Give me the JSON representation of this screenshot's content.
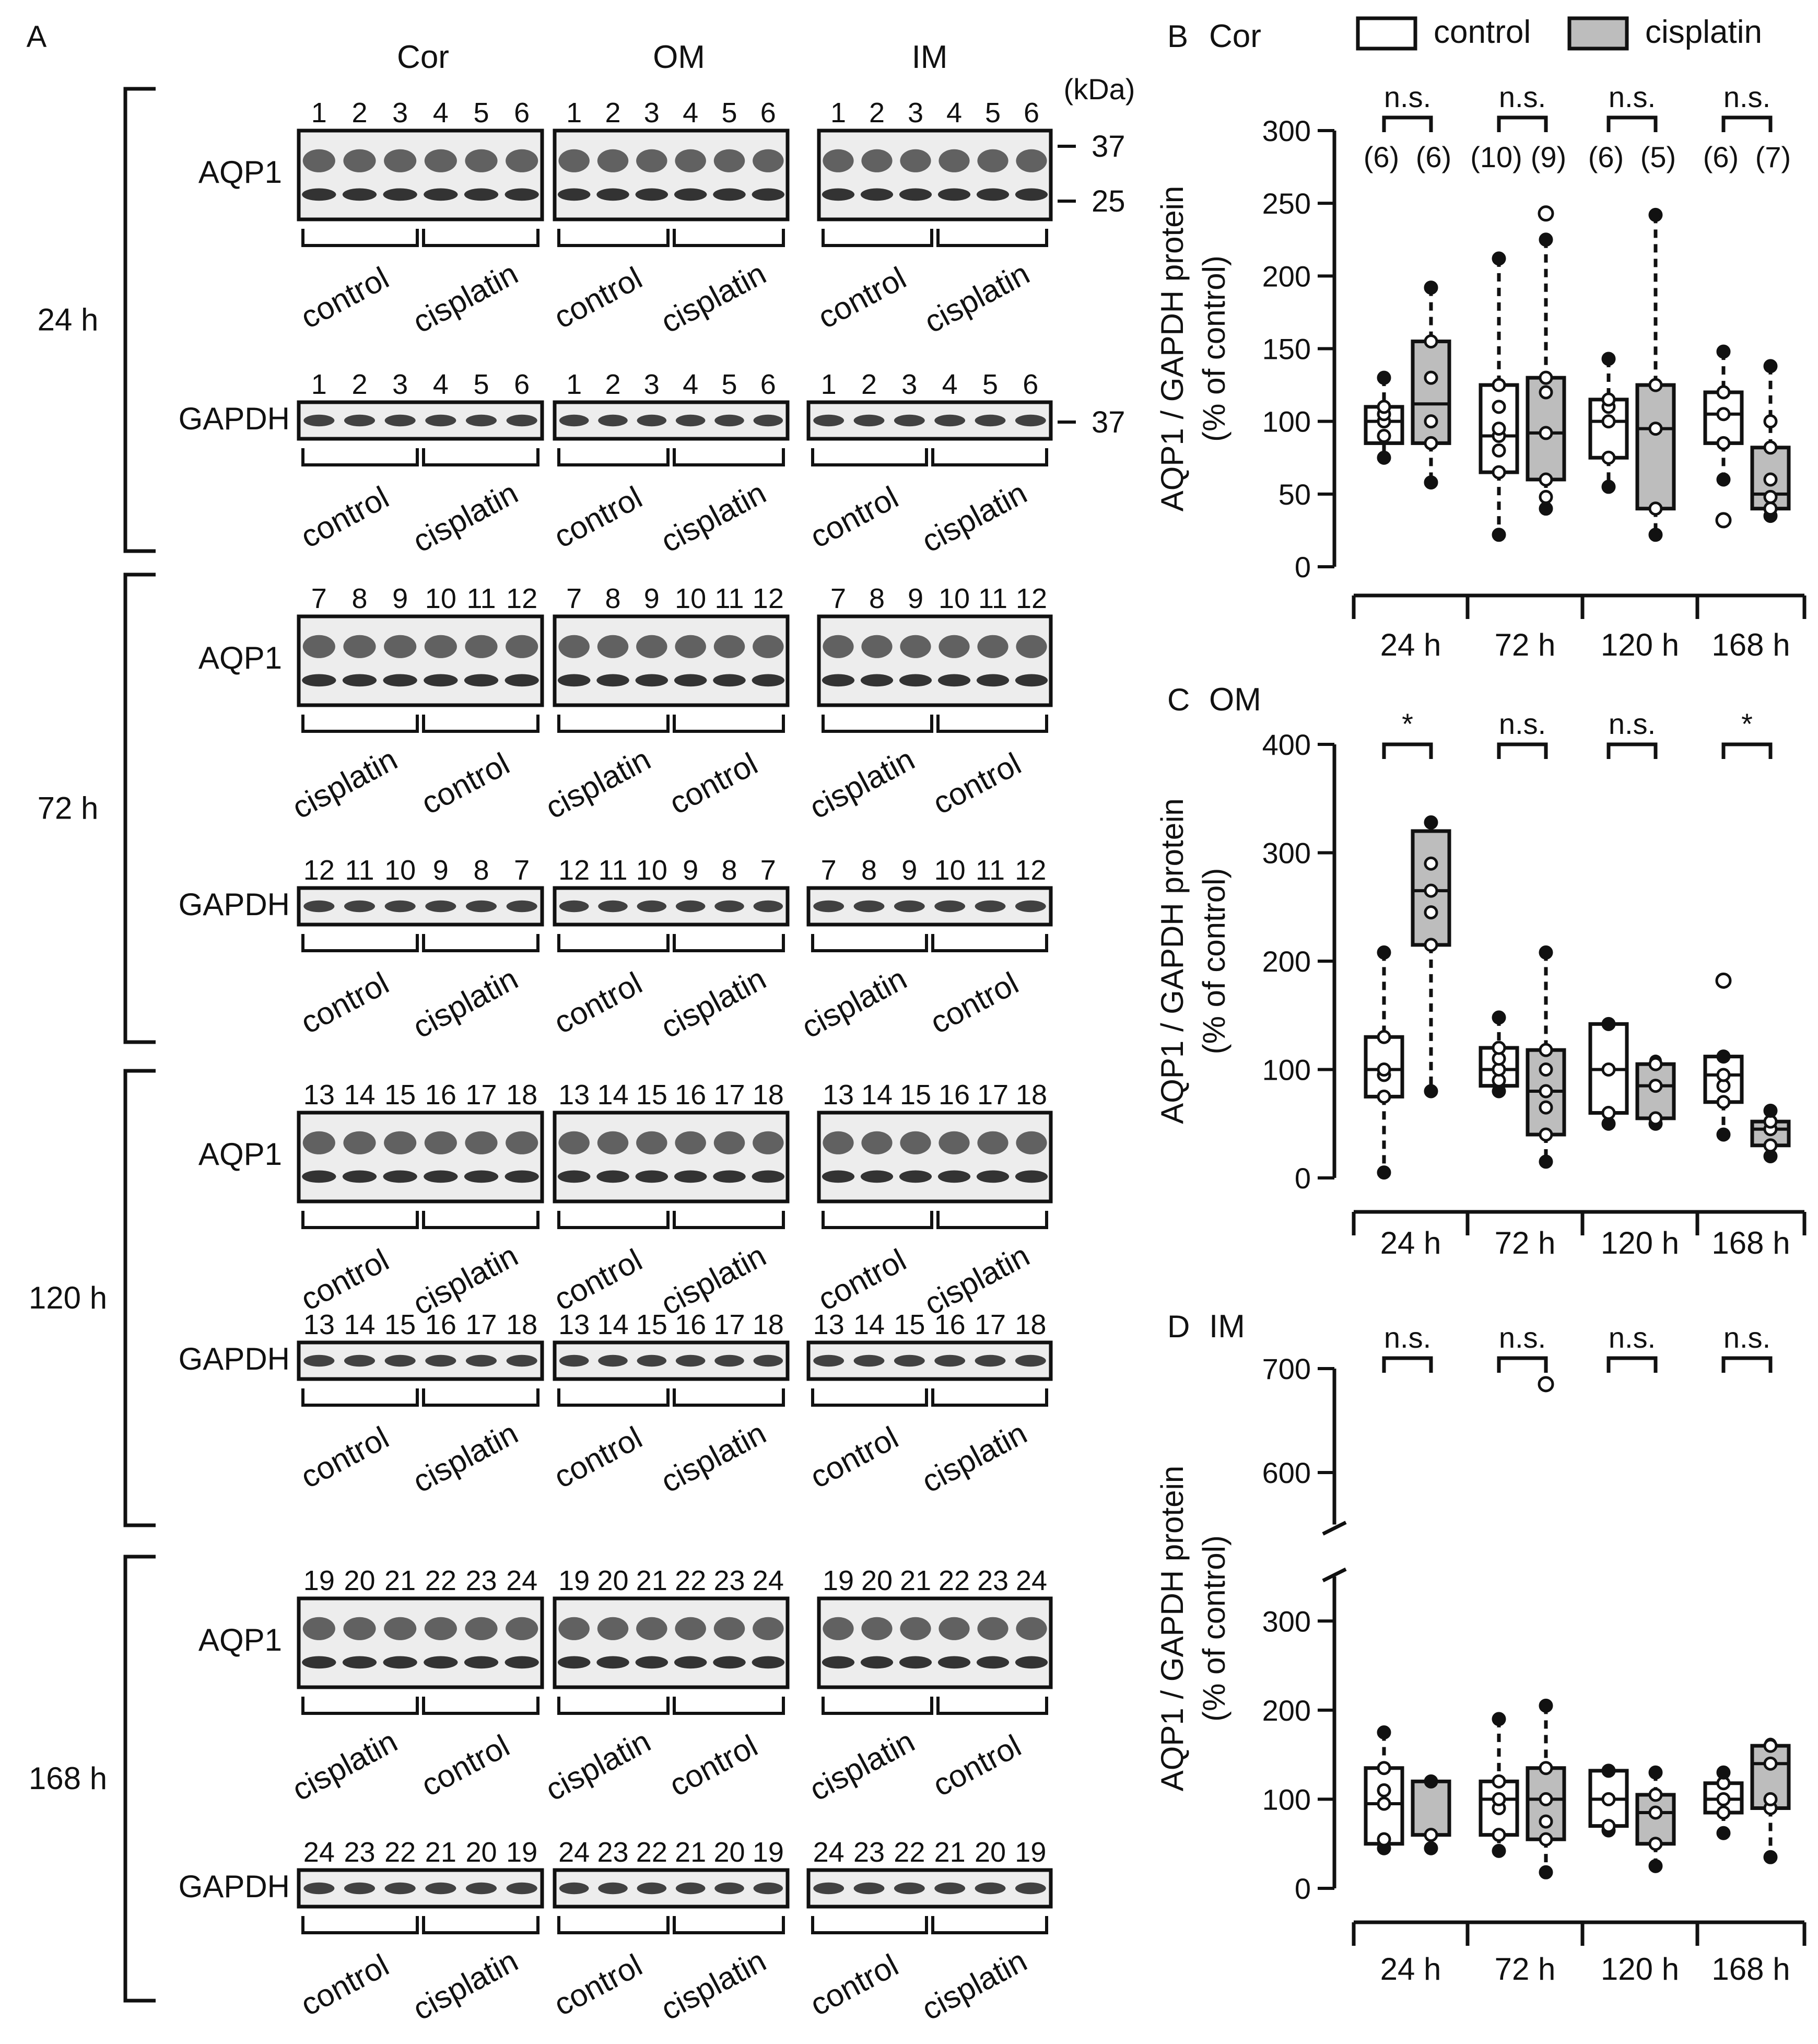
{
  "panel_a": {
    "label": "A",
    "region_labels": [
      "Cor",
      "OM",
      "IM"
    ],
    "unit_label": "(kDa)",
    "mw_markers": [
      "37",
      "25",
      "37"
    ],
    "protein_labels": {
      "aqp1": "AQP1",
      "gapdh": "GAPDH"
    },
    "group_labels": {
      "control": "control",
      "cisplatin": "cisplatin"
    },
    "timepoints": [
      {
        "label": "24 h",
        "aqp1_lanes": [
          [
            "1",
            "2",
            "3",
            "4",
            "5",
            "6"
          ],
          [
            "1",
            "2",
            "3",
            "4",
            "5",
            "6"
          ],
          [
            "1",
            "2",
            "3",
            "4",
            "5",
            "6"
          ]
        ],
        "aqp1_groups": [
          [
            "control",
            "cisplatin"
          ],
          [
            "control",
            "cisplatin"
          ],
          [
            "control",
            "cisplatin"
          ]
        ],
        "gapdh_lanes": [
          [
            "1",
            "2",
            "3",
            "4",
            "5",
            "6"
          ],
          [
            "1",
            "2",
            "3",
            "4",
            "5",
            "6"
          ],
          [
            "1",
            "2",
            "3",
            "4",
            "5",
            "6"
          ]
        ],
        "gapdh_groups": [
          [
            "control",
            "cisplatin"
          ],
          [
            "control",
            "cisplatin"
          ],
          [
            "control",
            "cisplatin"
          ]
        ]
      },
      {
        "label": "72 h",
        "aqp1_lanes": [
          [
            "7",
            "8",
            "9",
            "10",
            "11",
            "12"
          ],
          [
            "7",
            "8",
            "9",
            "10",
            "11",
            "12"
          ],
          [
            "7",
            "8",
            "9",
            "10",
            "11",
            "12"
          ]
        ],
        "aqp1_groups": [
          [
            "cisplatin",
            "control"
          ],
          [
            "cisplatin",
            "control"
          ],
          [
            "cisplatin",
            "control"
          ]
        ],
        "gapdh_lanes": [
          [
            "12",
            "11",
            "10",
            "9",
            "8",
            "7"
          ],
          [
            "12",
            "11",
            "10",
            "9",
            "8",
            "7"
          ],
          [
            "7",
            "8",
            "9",
            "10",
            "11",
            "12"
          ]
        ],
        "gapdh_groups": [
          [
            "control",
            "cisplatin"
          ],
          [
            "control",
            "cisplatin"
          ],
          [
            "cisplatin",
            "control"
          ]
        ]
      },
      {
        "label": "120 h",
        "aqp1_lanes": [
          [
            "13",
            "14",
            "15",
            "16",
            "17",
            "18"
          ],
          [
            "13",
            "14",
            "15",
            "16",
            "17",
            "18"
          ],
          [
            "13",
            "14",
            "15",
            "16",
            "17",
            "18"
          ]
        ],
        "aqp1_groups": [
          [
            "control",
            "cisplatin"
          ],
          [
            "control",
            "cisplatin"
          ],
          [
            "control",
            "cisplatin"
          ]
        ],
        "gapdh_lanes": [
          [
            "13",
            "14",
            "15",
            "16",
            "17",
            "18"
          ],
          [
            "13",
            "14",
            "15",
            "16",
            "17",
            "18"
          ],
          [
            "13",
            "14",
            "15",
            "16",
            "17",
            "18"
          ]
        ],
        "gapdh_groups": [
          [
            "control",
            "cisplatin"
          ],
          [
            "control",
            "cisplatin"
          ],
          [
            "control",
            "cisplatin"
          ]
        ]
      },
      {
        "label": "168 h",
        "aqp1_lanes": [
          [
            "19",
            "20",
            "21",
            "22",
            "23",
            "24"
          ],
          [
            "19",
            "20",
            "21",
            "22",
            "23",
            "24"
          ],
          [
            "19",
            "20",
            "21",
            "22",
            "23",
            "24"
          ]
        ],
        "aqp1_groups": [
          [
            "cisplatin",
            "control"
          ],
          [
            "cisplatin",
            "control"
          ],
          [
            "cisplatin",
            "control"
          ]
        ],
        "gapdh_lanes": [
          [
            "24",
            "23",
            "22",
            "21",
            "20",
            "19"
          ],
          [
            "24",
            "23",
            "22",
            "21",
            "20",
            "19"
          ],
          [
            "24",
            "23",
            "22",
            "21",
            "20",
            "19"
          ]
        ],
        "gapdh_groups": [
          [
            "control",
            "cisplatin"
          ],
          [
            "control",
            "cisplatin"
          ],
          [
            "control",
            "cisplatin"
          ]
        ]
      }
    ]
  },
  "legend": {
    "control": "control",
    "cisplatin": "cisplatin"
  },
  "colors": {
    "control_fill": "#ffffff",
    "cisplatin_fill": "#bdbdbd",
    "ink": "#111111",
    "blot_bg": "#ededed"
  },
  "chart_data": [
    {
      "panel": "B",
      "title": "Cor",
      "type": "box",
      "ylabel_line1": "AQP1 / GAPDH protein",
      "ylabel_line2": "(% of control)",
      "categories": [
        "24 h",
        "72 h",
        "120 h",
        "168 h"
      ],
      "ylim": [
        0,
        300
      ],
      "yticks": [
        0,
        50,
        100,
        150,
        200,
        250,
        300
      ],
      "significance": [
        "n.s.",
        "n.s.",
        "n.s.",
        "n.s."
      ],
      "n_labels": [
        [
          "(6)",
          "(6)"
        ],
        [
          "(10)",
          "(9)"
        ],
        [
          "(6)",
          "(5)"
        ],
        [
          "(6)",
          "(7)"
        ]
      ],
      "series": [
        {
          "name": "control",
          "boxes": [
            {
              "min": 75,
              "q1": 85,
              "median": 100,
              "q3": 110,
              "max": 130,
              "points": [
                75,
                90,
                100,
                105,
                110,
                130
              ],
              "outliers": []
            },
            {
              "min": 22,
              "q1": 65,
              "median": 90,
              "q3": 125,
              "max": 212,
              "points": [
                22,
                65,
                80,
                90,
                95,
                110,
                125,
                212
              ],
              "outliers": []
            },
            {
              "min": 55,
              "q1": 75,
              "median": 100,
              "q3": 115,
              "max": 143,
              "points": [
                55,
                75,
                100,
                110,
                115,
                143
              ],
              "outliers": []
            },
            {
              "min": 60,
              "q1": 85,
              "median": 105,
              "q3": 120,
              "max": 148,
              "points": [
                60,
                85,
                105,
                120,
                148
              ],
              "outliers": [
                32
              ]
            }
          ]
        },
        {
          "name": "cisplatin",
          "boxes": [
            {
              "min": 58,
              "q1": 85,
              "median": 112,
              "q3": 155,
              "max": 192,
              "points": [
                58,
                85,
                100,
                130,
                155,
                192
              ],
              "outliers": []
            },
            {
              "min": 40,
              "q1": 60,
              "median": 92,
              "q3": 130,
              "max": 225,
              "points": [
                40,
                48,
                60,
                92,
                120,
                130,
                225
              ],
              "outliers": [
                243
              ]
            },
            {
              "min": 22,
              "q1": 40,
              "median": 95,
              "q3": 125,
              "max": 242,
              "points": [
                22,
                40,
                95,
                125,
                242
              ],
              "outliers": []
            },
            {
              "min": 35,
              "q1": 40,
              "median": 50,
              "q3": 82,
              "max": 138,
              "points": [
                35,
                40,
                48,
                60,
                82,
                100,
                138
              ],
              "outliers": []
            }
          ]
        }
      ]
    },
    {
      "panel": "C",
      "title": "OM",
      "type": "box",
      "ylabel_line1": "AQP1 / GAPDH protein",
      "ylabel_line2": "(% of control)",
      "categories": [
        "24 h",
        "72 h",
        "120 h",
        "168 h"
      ],
      "ylim": [
        0,
        400
      ],
      "yticks": [
        0,
        100,
        200,
        300,
        400
      ],
      "significance": [
        "*",
        "n.s.",
        "n.s.",
        "*"
      ],
      "series": [
        {
          "name": "control",
          "boxes": [
            {
              "min": 5,
              "q1": 75,
              "median": 100,
              "q3": 130,
              "max": 208,
              "points": [
                5,
                75,
                95,
                100,
                130,
                208
              ],
              "outliers": []
            },
            {
              "min": 80,
              "q1": 85,
              "median": 100,
              "q3": 120,
              "max": 148,
              "points": [
                80,
                90,
                100,
                110,
                120,
                148
              ],
              "outliers": []
            },
            {
              "min": 50,
              "q1": 60,
              "median": 100,
              "q3": 142,
              "max": 142,
              "points": [
                50,
                60,
                100,
                142
              ],
              "outliers": []
            },
            {
              "min": 40,
              "q1": 70,
              "median": 95,
              "q3": 112,
              "max": 112,
              "points": [
                40,
                70,
                85,
                95,
                112
              ],
              "outliers": [
                182
              ]
            }
          ]
        },
        {
          "name": "cisplatin",
          "boxes": [
            {
              "min": 80,
              "q1": 215,
              "median": 265,
              "q3": 320,
              "max": 328,
              "points": [
                80,
                215,
                245,
                265,
                290,
                328
              ],
              "outliers": []
            },
            {
              "min": 15,
              "q1": 40,
              "median": 80,
              "q3": 118,
              "max": 208,
              "points": [
                15,
                40,
                65,
                80,
                100,
                118,
                208
              ],
              "outliers": []
            },
            {
              "min": 50,
              "q1": 55,
              "median": 85,
              "q3": 105,
              "max": 108,
              "points": [
                50,
                55,
                85,
                105
              ],
              "outliers": []
            },
            {
              "min": 20,
              "q1": 30,
              "median": 45,
              "q3": 52,
              "max": 62,
              "points": [
                20,
                30,
                45,
                52,
                62
              ],
              "outliers": []
            }
          ]
        }
      ]
    },
    {
      "panel": "D",
      "title": "IM",
      "type": "box",
      "ylabel_line1": "AQP1 / GAPDH protein",
      "ylabel_line2": "(% of control)",
      "categories": [
        "24 h",
        "72 h",
        "120 h",
        "168 h"
      ],
      "ylim": [
        0,
        700
      ],
      "axis_break": [
        350,
        550
      ],
      "yticks": [
        0,
        100,
        200,
        300,
        600,
        700
      ],
      "significance": [
        "n.s.",
        "n.s.",
        "n.s.",
        "n.s."
      ],
      "series": [
        {
          "name": "control",
          "boxes": [
            {
              "min": 45,
              "q1": 50,
              "median": 95,
              "q3": 135,
              "max": 175,
              "points": [
                45,
                55,
                95,
                110,
                135,
                175
              ],
              "outliers": []
            },
            {
              "min": 42,
              "q1": 60,
              "median": 100,
              "q3": 120,
              "max": 190,
              "points": [
                42,
                60,
                90,
                100,
                120,
                190
              ],
              "outliers": []
            },
            {
              "min": 65,
              "q1": 70,
              "median": 100,
              "q3": 132,
              "max": 132,
              "points": [
                65,
                70,
                100,
                132
              ],
              "outliers": []
            },
            {
              "min": 62,
              "q1": 85,
              "median": 100,
              "q3": 118,
              "max": 130,
              "points": [
                62,
                85,
                100,
                118,
                130
              ],
              "outliers": []
            }
          ]
        },
        {
          "name": "cisplatin",
          "boxes": [
            {
              "min": 45,
              "q1": 60,
              "median": 60,
              "q3": 120,
              "max": 120,
              "points": [
                45,
                60,
                120
              ],
              "outliers": []
            },
            {
              "min": 18,
              "q1": 55,
              "median": 100,
              "q3": 135,
              "max": 205,
              "points": [
                18,
                55,
                75,
                100,
                135,
                205
              ],
              "outliers": [
                685
              ]
            },
            {
              "min": 25,
              "q1": 50,
              "median": 85,
              "q3": 105,
              "max": 130,
              "points": [
                25,
                50,
                85,
                105,
                130
              ],
              "outliers": []
            },
            {
              "min": 35,
              "q1": 90,
              "median": 140,
              "q3": 160,
              "max": 162,
              "points": [
                35,
                90,
                100,
                140,
                160
              ],
              "outliers": []
            }
          ]
        }
      ]
    }
  ]
}
